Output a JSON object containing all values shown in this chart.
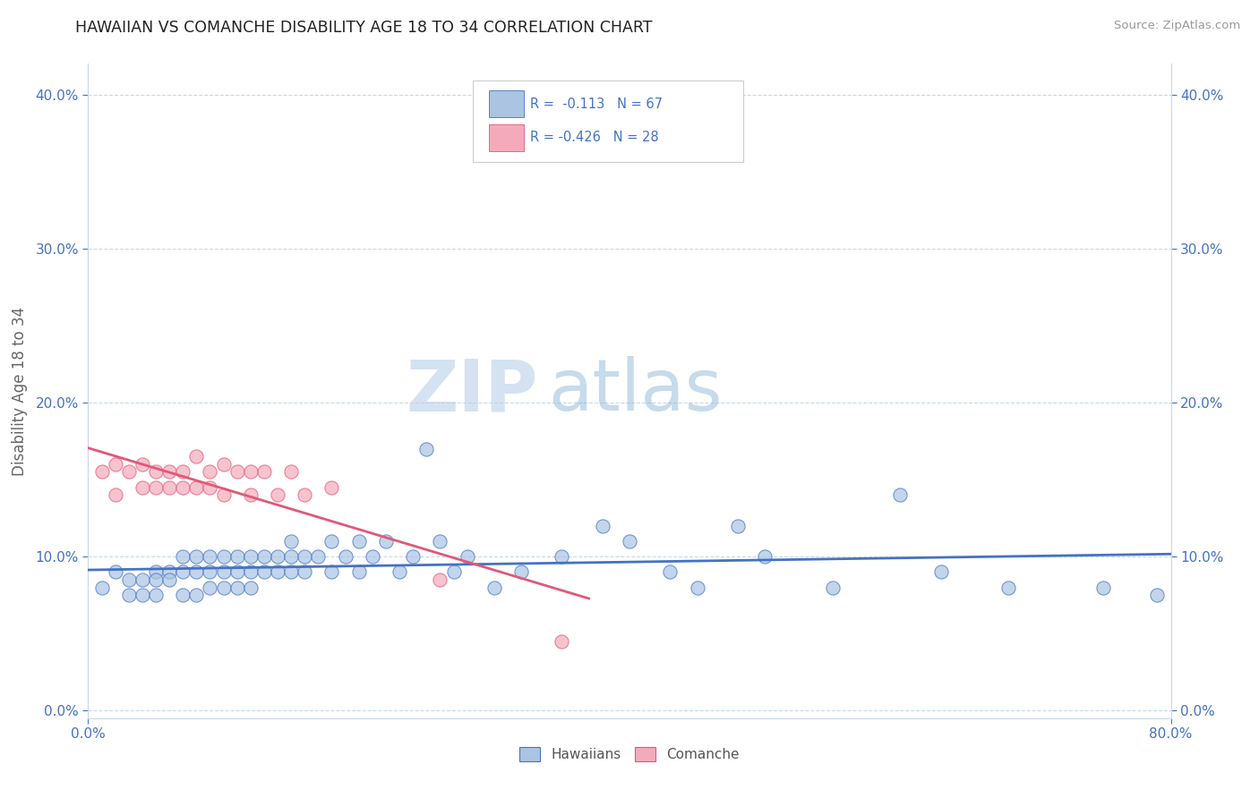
{
  "title": "HAWAIIAN VS COMANCHE DISABILITY AGE 18 TO 34 CORRELATION CHART",
  "source": "Source: ZipAtlas.com",
  "ylabel": "Disability Age 18 to 34",
  "xlim": [
    0.0,
    0.8
  ],
  "ylim": [
    -0.005,
    0.42
  ],
  "yticks": [
    0.0,
    0.1,
    0.2,
    0.3,
    0.4
  ],
  "ytick_labels": [
    "0.0%",
    "10.0%",
    "20.0%",
    "30.0%",
    "40.0%"
  ],
  "hawaiian_R": -0.113,
  "hawaiian_N": 67,
  "comanche_R": -0.426,
  "comanche_N": 28,
  "hawaiian_color": "#aac4e2",
  "comanche_color": "#f5aabb",
  "hawaiian_line_color": "#4472c4",
  "comanche_line_color": "#e05878",
  "watermark_zip": "ZIP",
  "watermark_atlas": "atlas",
  "hawaiian_x": [
    0.01,
    0.02,
    0.03,
    0.03,
    0.04,
    0.04,
    0.05,
    0.05,
    0.05,
    0.06,
    0.06,
    0.07,
    0.07,
    0.07,
    0.08,
    0.08,
    0.08,
    0.09,
    0.09,
    0.09,
    0.1,
    0.1,
    0.1,
    0.11,
    0.11,
    0.11,
    0.12,
    0.12,
    0.12,
    0.13,
    0.13,
    0.14,
    0.14,
    0.15,
    0.15,
    0.15,
    0.16,
    0.16,
    0.17,
    0.18,
    0.18,
    0.19,
    0.2,
    0.2,
    0.21,
    0.22,
    0.23,
    0.24,
    0.25,
    0.26,
    0.27,
    0.28,
    0.3,
    0.32,
    0.35,
    0.38,
    0.4,
    0.43,
    0.45,
    0.48,
    0.5,
    0.55,
    0.6,
    0.63,
    0.68,
    0.75,
    0.79
  ],
  "hawaiian_y": [
    0.08,
    0.09,
    0.085,
    0.075,
    0.085,
    0.075,
    0.09,
    0.085,
    0.075,
    0.09,
    0.085,
    0.1,
    0.09,
    0.075,
    0.1,
    0.09,
    0.075,
    0.1,
    0.09,
    0.08,
    0.1,
    0.09,
    0.08,
    0.1,
    0.09,
    0.08,
    0.1,
    0.09,
    0.08,
    0.1,
    0.09,
    0.1,
    0.09,
    0.11,
    0.1,
    0.09,
    0.1,
    0.09,
    0.1,
    0.11,
    0.09,
    0.1,
    0.11,
    0.09,
    0.1,
    0.11,
    0.09,
    0.1,
    0.17,
    0.11,
    0.09,
    0.1,
    0.08,
    0.09,
    0.1,
    0.12,
    0.11,
    0.09,
    0.08,
    0.12,
    0.1,
    0.08,
    0.14,
    0.09,
    0.08,
    0.08,
    0.075
  ],
  "comanche_x": [
    0.01,
    0.02,
    0.02,
    0.03,
    0.04,
    0.04,
    0.05,
    0.05,
    0.06,
    0.06,
    0.07,
    0.07,
    0.08,
    0.08,
    0.09,
    0.09,
    0.1,
    0.1,
    0.11,
    0.12,
    0.12,
    0.13,
    0.14,
    0.15,
    0.16,
    0.18,
    0.26,
    0.35
  ],
  "comanche_y": [
    0.155,
    0.16,
    0.14,
    0.155,
    0.16,
    0.145,
    0.155,
    0.145,
    0.155,
    0.145,
    0.155,
    0.145,
    0.165,
    0.145,
    0.155,
    0.145,
    0.16,
    0.14,
    0.155,
    0.155,
    0.14,
    0.155,
    0.14,
    0.155,
    0.14,
    0.145,
    0.085,
    0.045
  ]
}
